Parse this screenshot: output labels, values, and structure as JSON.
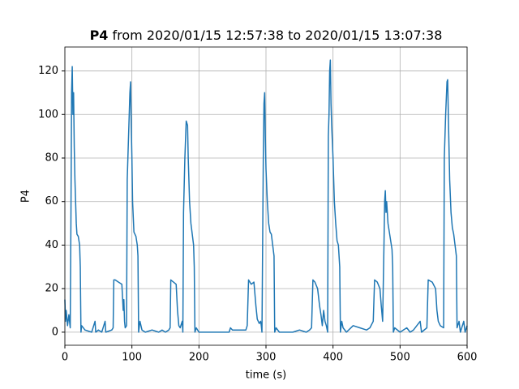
{
  "chart_data": {
    "type": "line",
    "title": {
      "name": "P4",
      "text": "from 2020/01/15 12:57:38 to 2020/01/15 13:07:38"
    },
    "xlabel": "time (s)",
    "ylabel": "P4",
    "x": [
      0,
      1,
      2,
      4,
      6,
      8,
      9,
      10,
      11,
      12,
      13,
      14,
      15,
      16,
      17,
      18,
      20,
      22,
      23,
      24,
      25,
      30,
      40,
      45,
      46,
      50,
      55,
      60,
      61,
      70,
      72,
      73,
      75,
      80,
      85,
      87,
      88,
      89,
      90,
      92,
      93,
      95,
      97,
      98,
      99,
      100,
      101,
      103,
      106,
      108,
      109,
      110,
      112,
      115,
      120,
      130,
      140,
      145,
      150,
      155,
      157,
      158,
      162,
      166,
      168,
      170,
      172,
      175,
      176,
      177,
      179,
      181,
      183,
      184,
      186,
      188,
      190,
      192,
      193,
      194,
      196,
      200,
      245,
      247,
      250,
      270,
      272,
      274,
      278,
      282,
      285,
      287,
      290,
      292,
      293,
      294,
      296,
      297,
      298,
      299,
      300,
      302,
      304,
      306,
      308,
      310,
      312,
      313,
      315,
      320,
      340,
      350,
      360,
      365,
      368,
      370,
      373,
      377,
      380,
      382,
      384,
      386,
      388,
      390,
      392,
      393,
      394,
      395,
      396,
      397,
      398,
      400,
      402,
      404,
      406,
      408,
      410,
      411,
      413,
      415,
      420,
      430,
      440,
      450,
      455,
      460,
      462,
      466,
      470,
      472,
      474,
      476,
      477,
      478,
      479,
      480,
      482,
      484,
      486,
      488,
      489,
      490,
      492,
      500,
      510,
      515,
      520,
      530,
      532,
      540,
      542,
      548,
      553,
      555,
      557,
      560,
      565,
      566,
      568,
      570,
      571,
      572,
      573,
      574,
      576,
      578,
      580,
      582,
      584,
      585,
      588,
      590,
      595,
      597,
      600
    ],
    "series": [
      {
        "color": "#1f77b4",
        "values": [
          15,
          5,
          10,
          3,
          8,
          2,
          50,
          110,
          122,
          100,
          110,
          85,
          70,
          60,
          50,
          45,
          44,
          40,
          30,
          0,
          3,
          1,
          0,
          5,
          0,
          1,
          0,
          5,
          0,
          1,
          2,
          24,
          24,
          23,
          22,
          10,
          15,
          5,
          2,
          3,
          70,
          90,
          110,
          115,
          95,
          80,
          60,
          46,
          44,
          40,
          35,
          0,
          5,
          1,
          0,
          1,
          0,
          1,
          0,
          1,
          2,
          24,
          23,
          22,
          10,
          3,
          2,
          5,
          0,
          55,
          80,
          97,
          95,
          80,
          60,
          50,
          45,
          40,
          30,
          0,
          2,
          0,
          0,
          2,
          1,
          1,
          3,
          24,
          22,
          23,
          12,
          6,
          4,
          5,
          3,
          0,
          80,
          105,
          110,
          90,
          75,
          60,
          50,
          46,
          45,
          40,
          35,
          0,
          2,
          0,
          0,
          1,
          0,
          1,
          2,
          24,
          23,
          20,
          12,
          8,
          3,
          10,
          5,
          3,
          0,
          90,
          100,
          120,
          125,
          105,
          95,
          80,
          60,
          50,
          42,
          40,
          30,
          0,
          5,
          2,
          0,
          3,
          2,
          1,
          2,
          5,
          24,
          23,
          20,
          12,
          5,
          40,
          60,
          65,
          55,
          60,
          50,
          46,
          42,
          38,
          30,
          0,
          2,
          0,
          2,
          0,
          1,
          5,
          0,
          2,
          24,
          23,
          20,
          10,
          5,
          3,
          2,
          80,
          100,
          115,
          116,
          100,
          85,
          70,
          55,
          48,
          45,
          40,
          35,
          2,
          5,
          0,
          5,
          0,
          3
        ]
      }
    ],
    "xlim": [
      0,
      600
    ],
    "ylim": [
      -6,
      131
    ],
    "xticks": [
      0,
      100,
      200,
      300,
      400,
      500,
      600
    ],
    "yticks": [
      0,
      20,
      40,
      60,
      80,
      100,
      120
    ],
    "grid": true
  }
}
